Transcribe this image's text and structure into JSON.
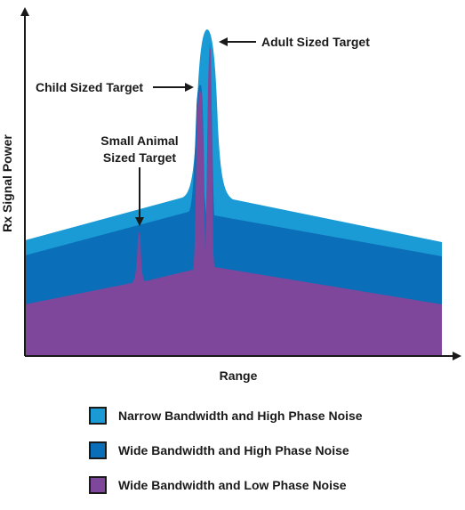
{
  "axes": {
    "x_label": "Range",
    "y_label": "Rx Signal Power"
  },
  "annotations": {
    "adult": "Adult Sized Target",
    "child": "Child Sized Target",
    "animal_line1": "Small Animal",
    "animal_line2": "Sized Target"
  },
  "colors": {
    "narrow_high_noise": "#1a9bd5",
    "wide_high_noise": "#0b6eb8",
    "wide_low_noise": "#7e479b"
  },
  "legend": [
    {
      "label": "Narrow Bandwidth and High Phase Noise",
      "color": "#1a9bd5"
    },
    {
      "label": "Wide Bandwidth and High Phase Noise",
      "color": "#0b6eb8"
    },
    {
      "label": "Wide Bandwidth and Low Phase Noise",
      "color": "#7e479b"
    }
  ]
}
